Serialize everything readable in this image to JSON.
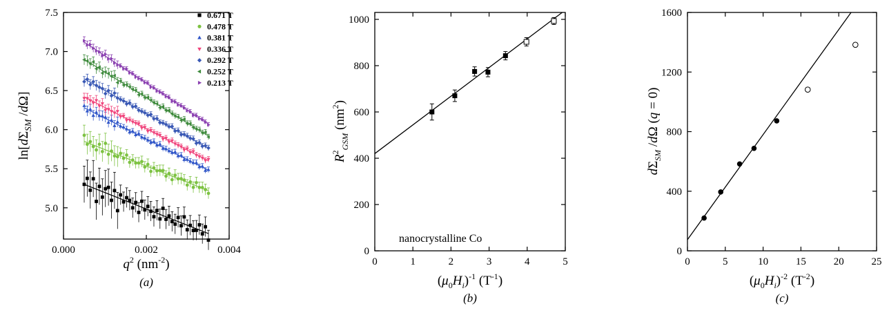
{
  "figure": {
    "panels": [
      {
        "id": "a",
        "panel_label": "(a)",
        "ylabel": "ln[dΣ_SM /dΩ]",
        "xlabel": "q² (nm⁻²)"
      },
      {
        "id": "b",
        "panel_label": "(b)",
        "ylabel": "R²_GSM (nm²)",
        "xlabel": "(μ₀H_i)⁻¹ (T⁻¹)",
        "annotation": "nanocrystalline Co"
      },
      {
        "id": "c",
        "panel_label": "(c)",
        "ylabel": "dΣ_SM /dΩ (q = 0)",
        "xlabel": "(μ₀H_i)⁻² (T⁻²)"
      }
    ]
  },
  "chart_data": [
    {
      "panel": "a",
      "type": "scatter",
      "xlim": [
        0,
        0.004
      ],
      "ylim": [
        4.6,
        7.5
      ],
      "xticks": [
        "0.000",
        "0.002",
        "0.004"
      ],
      "yticks": [
        "5.0",
        "5.5",
        "6.0",
        "6.5",
        "7.0",
        "7.5"
      ],
      "xtick_values": [
        0,
        0.002,
        0.004
      ],
      "ytick_values": [
        5.0,
        5.5,
        6.0,
        6.5,
        7.0,
        7.5
      ],
      "legend_position": "top-right",
      "series": [
        {
          "name": "0.671 T",
          "color": "#000000",
          "marker": "square",
          "x_range": [
            0.0005,
            0.0035
          ],
          "fit": [
            5.3,
            4.67
          ],
          "noise": 0.12,
          "err": 0.18
        },
        {
          "name": "0.478 T",
          "color": "#7dc242",
          "marker": "circle",
          "x_range": [
            0.0005,
            0.0035
          ],
          "fit": [
            5.85,
            5.22
          ],
          "noise": 0.06,
          "err": 0.1
        },
        {
          "name": "0.381 T",
          "color": "#2f55c8",
          "marker": "triangle-up",
          "x_range": [
            0.0005,
            0.0035
          ],
          "fit": [
            6.28,
            5.48
          ],
          "noise": 0.03,
          "err": 0.05
        },
        {
          "name": "0.336 T",
          "color": "#f0457c",
          "marker": "triangle-down",
          "x_range": [
            0.0005,
            0.0035
          ],
          "fit": [
            6.42,
            5.6
          ],
          "noise": 0.03,
          "err": 0.05
        },
        {
          "name": "0.292 T",
          "color": "#3a59b5",
          "marker": "diamond",
          "x_range": [
            0.0005,
            0.0035
          ],
          "fit": [
            6.65,
            5.76
          ],
          "noise": 0.03,
          "err": 0.05
        },
        {
          "name": "0.252 T",
          "color": "#3e8a3c",
          "marker": "triangle-left",
          "x_range": [
            0.0005,
            0.0035
          ],
          "fit": [
            6.9,
            5.92
          ],
          "noise": 0.03,
          "err": 0.05
        },
        {
          "name": "0.213 T",
          "color": "#8a3fb0",
          "marker": "triangle-right",
          "x_range": [
            0.0005,
            0.0035
          ],
          "fit": [
            7.12,
            6.07
          ],
          "noise": 0.02,
          "err": 0.04
        }
      ]
    },
    {
      "panel": "b",
      "type": "scatter",
      "xlim": [
        0,
        5
      ],
      "ylim": [
        0,
        1030
      ],
      "xticks": [
        "0",
        "1",
        "2",
        "3",
        "4",
        "5"
      ],
      "yticks": [
        "0",
        "200",
        "400",
        "600",
        "800",
        "1000"
      ],
      "xtick_values": [
        0,
        1,
        2,
        3,
        4,
        5
      ],
      "ytick_values": [
        0,
        200,
        400,
        600,
        800,
        1000
      ],
      "points": [
        {
          "x": 1.5,
          "y": 600,
          "err": 35,
          "filled": true
        },
        {
          "x": 2.1,
          "y": 670,
          "err": 25,
          "filled": true
        },
        {
          "x": 2.62,
          "y": 775,
          "err": 20,
          "filled": true
        },
        {
          "x": 2.97,
          "y": 772,
          "err": 20,
          "filled": true
        },
        {
          "x": 3.43,
          "y": 843,
          "err": 18,
          "filled": true
        },
        {
          "x": 3.98,
          "y": 903,
          "err": 18,
          "filled": false
        },
        {
          "x": 4.7,
          "y": 993,
          "err": 15,
          "filled": false
        }
      ],
      "fit": {
        "intercept": 420,
        "slope": 124
      }
    },
    {
      "panel": "c",
      "type": "scatter",
      "xlim": [
        0,
        25
      ],
      "ylim": [
        0,
        1600
      ],
      "xticks": [
        "0",
        "5",
        "10",
        "15",
        "20",
        "25"
      ],
      "yticks": [
        "0",
        "400",
        "800",
        "1200",
        "1600"
      ],
      "xtick_values": [
        0,
        5,
        10,
        15,
        20,
        25
      ],
      "ytick_values": [
        0,
        400,
        800,
        1200,
        1600
      ],
      "points": [
        {
          "x": 2.2,
          "y": 220,
          "filled": true
        },
        {
          "x": 4.4,
          "y": 395,
          "filled": true
        },
        {
          "x": 6.9,
          "y": 583,
          "filled": true
        },
        {
          "x": 8.8,
          "y": 688,
          "filled": true
        },
        {
          "x": 11.8,
          "y": 872,
          "filled": true
        },
        {
          "x": 15.9,
          "y": 1082,
          "filled": false
        },
        {
          "x": 22.2,
          "y": 1383,
          "filled": false
        }
      ],
      "fit": {
        "intercept": 75,
        "slope": 70.5
      }
    }
  ]
}
